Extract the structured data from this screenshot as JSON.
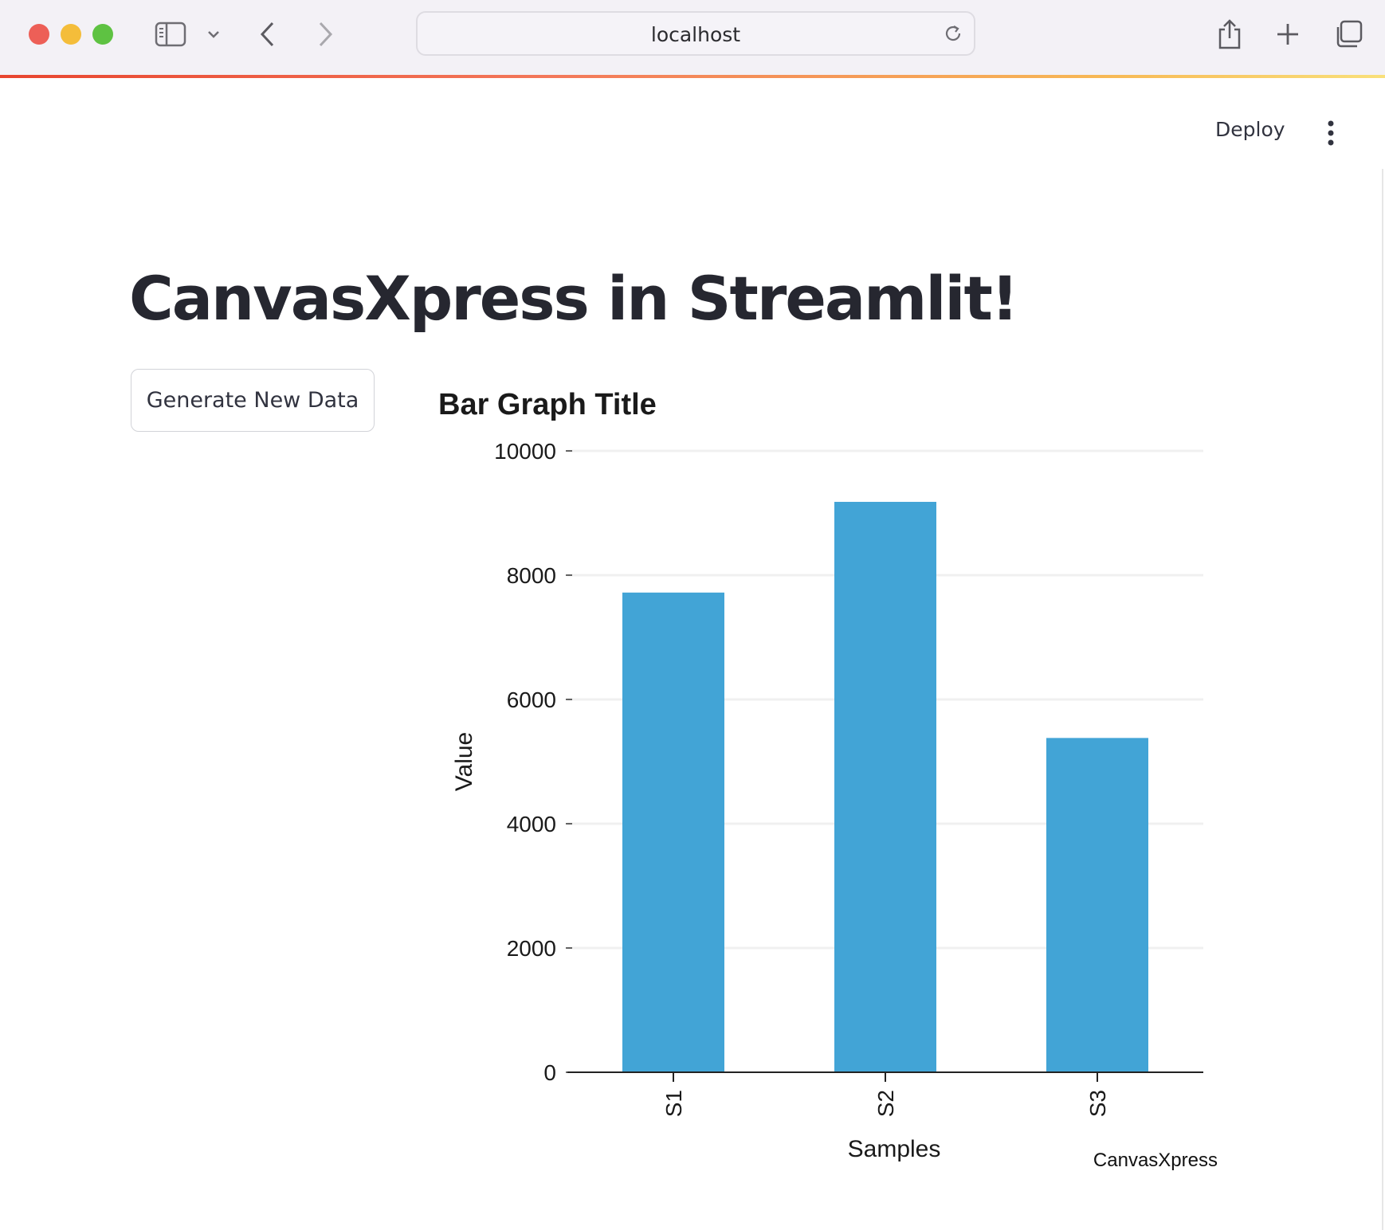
{
  "browser": {
    "url": "localhost"
  },
  "app": {
    "deploy_label": "Deploy",
    "title": "CanvasXpress in Streamlit!",
    "generate_button_label": "Generate New Data"
  },
  "colors": {
    "bar": "#42a4d6",
    "title": "#262730",
    "axis": "#222222"
  },
  "chart_data": {
    "type": "bar",
    "title": "Bar Graph Title",
    "xlabel": "Samples",
    "ylabel": "Value",
    "categories": [
      "S1",
      "S2",
      "S3"
    ],
    "values": [
      7720,
      9180,
      5380
    ],
    "ylim": [
      0,
      10000
    ],
    "yticks": [
      "0",
      "2000",
      "4000",
      "6000",
      "8000",
      "10000"
    ],
    "grid": true,
    "watermark": "CanvasXpress"
  }
}
